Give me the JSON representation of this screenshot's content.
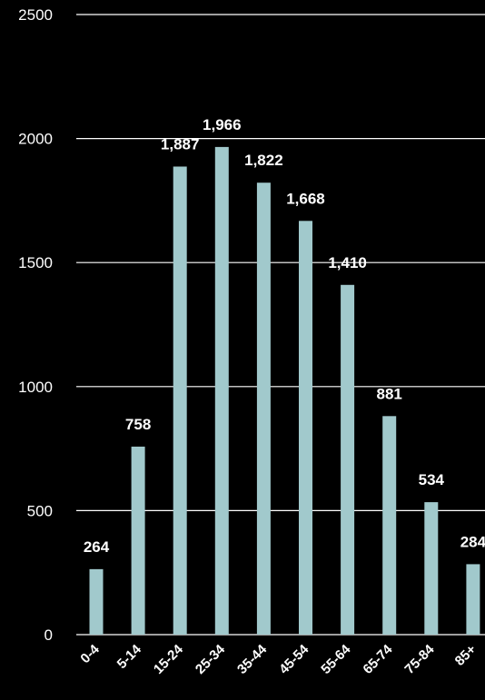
{
  "chart_data": {
    "type": "bar",
    "categories": [
      "0-4",
      "5-14",
      "15-24",
      "25-34",
      "35-44",
      "45-54",
      "55-64",
      "65-74",
      "75-84",
      "85+"
    ],
    "values": [
      264,
      758,
      1887,
      1966,
      1822,
      1668,
      1410,
      881,
      534,
      284
    ],
    "data_labels": [
      "264",
      "758",
      "1,887",
      "1,966",
      "1,822",
      "1,668",
      "1,410",
      "881",
      "534",
      "284"
    ],
    "yticks": [
      "0",
      "500",
      "1000",
      "1500",
      "2000",
      "2500"
    ],
    "ylim": [
      0,
      2500
    ],
    "grid": true,
    "colors": {
      "bar": "#a1c9cc",
      "background": "#000000",
      "text": "#ffffff",
      "grid": "#ffffff"
    }
  }
}
